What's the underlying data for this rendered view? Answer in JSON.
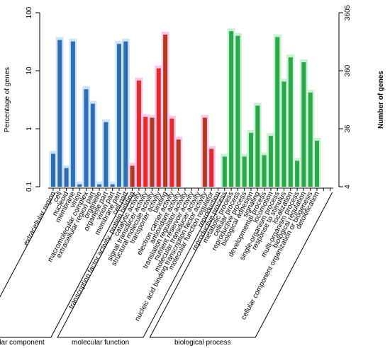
{
  "chart_data": {
    "type": "bar",
    "ylabel_left": "Percentage of genes",
    "ylabel_right": "Number of genes",
    "y_left_scale": "log",
    "ylim_left": [
      0.1,
      100
    ],
    "y_left_ticks": [
      "0.1",
      "1",
      "10",
      "100"
    ],
    "y_right_ticks": [
      "4",
      "36",
      "360",
      "3605"
    ],
    "grid": false,
    "legend": "none",
    "colors": {
      "cellular component": "#2f6db5",
      "molecular function": "#e8292a",
      "molecular function alt": "#b23a1e",
      "biological process": "#2aa84a"
    },
    "groups": [
      {
        "name": "cellular component",
        "start": 0,
        "end": 11
      },
      {
        "name": "molecular function",
        "start": 12,
        "end": 25
      },
      {
        "name": "biological process",
        "start": 26,
        "end": 42
      }
    ],
    "categories": [
      "extracellular region",
      "cell",
      "nucleoid",
      "membrane",
      "virion",
      "macromolecular complex",
      "extracellular region part",
      "organelle",
      "organelle part",
      "virion part",
      "membrane part",
      "cell part",
      "transcription factor activity, protein binding",
      "catalytic activity",
      "signal transducer activity",
      "structural molecule activity",
      "transporter activity",
      "binding",
      "electron carrier activity",
      "antioxidant activity",
      "translation regulator activity",
      "nutrient reservoir activity",
      "molecular transducer activity",
      "nucleic acid binding transcription factor activity",
      "molecular function regulator",
      "reproduction",
      "reproductive process",
      "metabolic process",
      "cellular process",
      "reproductive process",
      "biological adhesion",
      "signaling",
      "developmental process",
      "locomotion",
      "single-organism process",
      "response to stimulus",
      "localization",
      "multi-organism process",
      "biological regulation",
      "cellular component organization or biogenesis",
      "detoxification",
      "",
      ""
    ],
    "values": [
      0.37,
      34,
      0.21,
      32,
      0.11,
      4.8,
      2.7,
      0.11,
      1.3,
      0.11,
      29,
      32,
      0.23,
      6.8,
      1.6,
      1.55,
      11,
      42,
      1.5,
      0.65,
      0,
      0,
      0,
      1.55,
      0.45,
      0,
      0.33,
      48,
      40,
      0.33,
      0.85,
      2.5,
      0.35,
      0.75,
      38,
      6.5,
      17,
      0.28,
      14,
      4.2,
      0.62,
      0,
      0
    ],
    "bar_colors": [
      "#2f6db5",
      "#2f6db5",
      "#2f6db5",
      "#2f6db5",
      "#2f6db5",
      "#2f6db5",
      "#2f6db5",
      "#2f6db5",
      "#2f6db5",
      "#2f6db5",
      "#2f6db5",
      "#2f6db5",
      "#b23a1e",
      "#e8292a",
      "#e8292a",
      "#b23a1e",
      "#e8292a",
      "#b23a1e",
      "#e8292a",
      "#b23a1e",
      "#e8292a",
      "#e8292a",
      "#e8292a",
      "#b23a1e",
      "#e8292a",
      "#2aa84a",
      "#2aa84a",
      "#2aa84a",
      "#2aa84a",
      "#2aa84a",
      "#2aa84a",
      "#2aa84a",
      "#2aa84a",
      "#2aa84a",
      "#2aa84a",
      "#2aa84a",
      "#2aa84a",
      "#2aa84a",
      "#2aa84a",
      "#2aa84a",
      "#2aa84a",
      "#2aa84a",
      "#2aa84a"
    ]
  }
}
